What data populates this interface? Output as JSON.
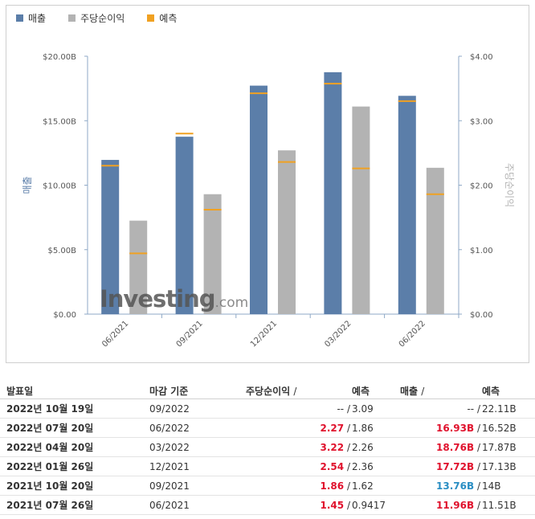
{
  "chart_data": {
    "type": "bar",
    "legend": [
      {
        "label": "매출",
        "color": "#5b7ea9"
      },
      {
        "label": "주당순이익",
        "color": "#b3b3b3"
      },
      {
        "label": "예측",
        "color": "#f0a122"
      }
    ],
    "categories": [
      "06/2021",
      "09/2021",
      "12/2021",
      "03/2022",
      "06/2022"
    ],
    "series": [
      {
        "name": "매출",
        "axis": "left",
        "values": [
          11.96,
          13.76,
          17.72,
          18.76,
          16.93
        ],
        "forecast": [
          11.51,
          14.0,
          17.13,
          17.87,
          16.52
        ]
      },
      {
        "name": "주당순이익",
        "axis": "right",
        "values": [
          1.45,
          1.86,
          2.54,
          3.22,
          2.27
        ],
        "forecast": [
          0.9417,
          1.62,
          2.36,
          2.26,
          1.86
        ]
      }
    ],
    "left_axis": {
      "label": "매출",
      "ylim": [
        0,
        20
      ],
      "ticks": [
        "$0.00",
        "$5.00B",
        "$10.00B",
        "$15.00B",
        "$20.00B"
      ]
    },
    "right_axis": {
      "label": "주당순이익",
      "ylim": [
        0,
        4
      ],
      "ticks": [
        "$0.00",
        "$1.00",
        "$2.00",
        "$3.00",
        "$4.00"
      ]
    },
    "grid": false,
    "legend_position": "top-left",
    "watermark": "Investing.com",
    "colors": {
      "revenue": "#5b7ea9",
      "eps": "#b3b3b3",
      "forecast": "#f0a122",
      "beat": "#e0122d",
      "miss": "#2a8ec3"
    }
  },
  "table": {
    "headers": {
      "date": "발표일",
      "period": "마감 기준",
      "eps": "주당순이익",
      "eps_forecast": "예측",
      "revenue": "매출",
      "revenue_forecast": "예측"
    },
    "separator": "/",
    "rows": [
      {
        "date": "2022년 10월 19일",
        "period": "09/2022",
        "eps": "--",
        "eps_class": "neutral",
        "eps_forecast": "3.09",
        "revenue": "--",
        "revenue_class": "neutral",
        "revenue_forecast": "22.11B"
      },
      {
        "date": "2022년 07월 20일",
        "period": "06/2022",
        "eps": "2.27",
        "eps_class": "beat",
        "eps_forecast": "1.86",
        "revenue": "16.93B",
        "revenue_class": "beat",
        "revenue_forecast": "16.52B"
      },
      {
        "date": "2022년 04월 20일",
        "period": "03/2022",
        "eps": "3.22",
        "eps_class": "beat",
        "eps_forecast": "2.26",
        "revenue": "18.76B",
        "revenue_class": "beat",
        "revenue_forecast": "17.87B"
      },
      {
        "date": "2022년 01월 26일",
        "period": "12/2021",
        "eps": "2.54",
        "eps_class": "beat",
        "eps_forecast": "2.36",
        "revenue": "17.72B",
        "revenue_class": "beat",
        "revenue_forecast": "17.13B"
      },
      {
        "date": "2021년 10월 20일",
        "period": "09/2021",
        "eps": "1.86",
        "eps_class": "beat",
        "eps_forecast": "1.62",
        "revenue": "13.76B",
        "revenue_class": "miss",
        "revenue_forecast": "14B"
      },
      {
        "date": "2021년 07월 26일",
        "period": "06/2021",
        "eps": "1.45",
        "eps_class": "beat",
        "eps_forecast": "0.9417",
        "revenue": "11.96B",
        "revenue_class": "beat",
        "revenue_forecast": "11.51B"
      }
    ]
  }
}
